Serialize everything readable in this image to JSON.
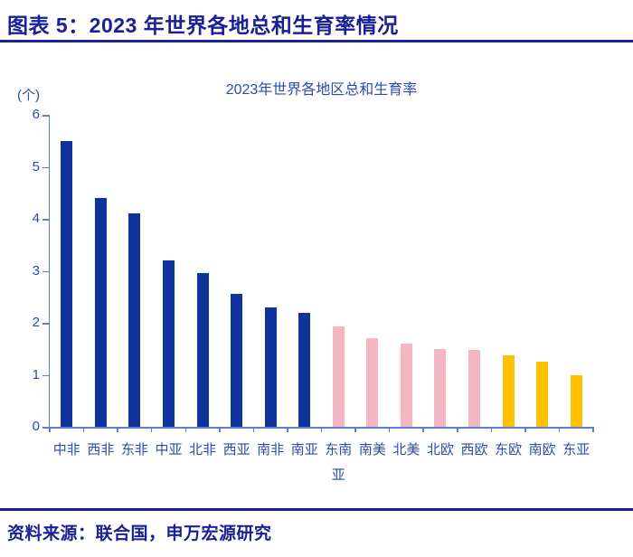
{
  "header": {
    "title": "图表 5：2023 年世界各地总和生育率情况",
    "accent_color": "#1A2096"
  },
  "footer": {
    "source": "资料来源：联合国，申万宏源研究"
  },
  "chart_data": {
    "type": "bar",
    "title": "2023年世界各地区总和生育率",
    "unit_label": "(个)",
    "xlabel": "",
    "ylabel": "",
    "categories": [
      "中非",
      "西非",
      "东非",
      "中亚",
      "北非",
      "西亚",
      "南非",
      "南亚",
      "东南亚",
      "南美",
      "北美",
      "北欧",
      "西欧",
      "东欧",
      "南欧",
      "东亚"
    ],
    "values": [
      5.5,
      4.4,
      4.1,
      3.2,
      2.95,
      2.55,
      2.3,
      2.2,
      1.93,
      1.7,
      1.6,
      1.5,
      1.48,
      1.37,
      1.26,
      1.0
    ],
    "bar_groups": [
      "navy",
      "navy",
      "navy",
      "navy",
      "navy",
      "navy",
      "navy",
      "navy",
      "pink",
      "pink",
      "pink",
      "pink",
      "pink",
      "gold",
      "gold",
      "gold"
    ],
    "palette": {
      "navy": "#10339C",
      "pink": "#F4B6C3",
      "gold": "#FFC000"
    },
    "axis_color": "#5C7FD0",
    "text_color": "#2D4BAA",
    "ylim": [
      0,
      6
    ],
    "yticks": [
      0,
      1,
      2,
      3,
      4,
      5,
      6
    ],
    "grid": false,
    "legend": null
  }
}
